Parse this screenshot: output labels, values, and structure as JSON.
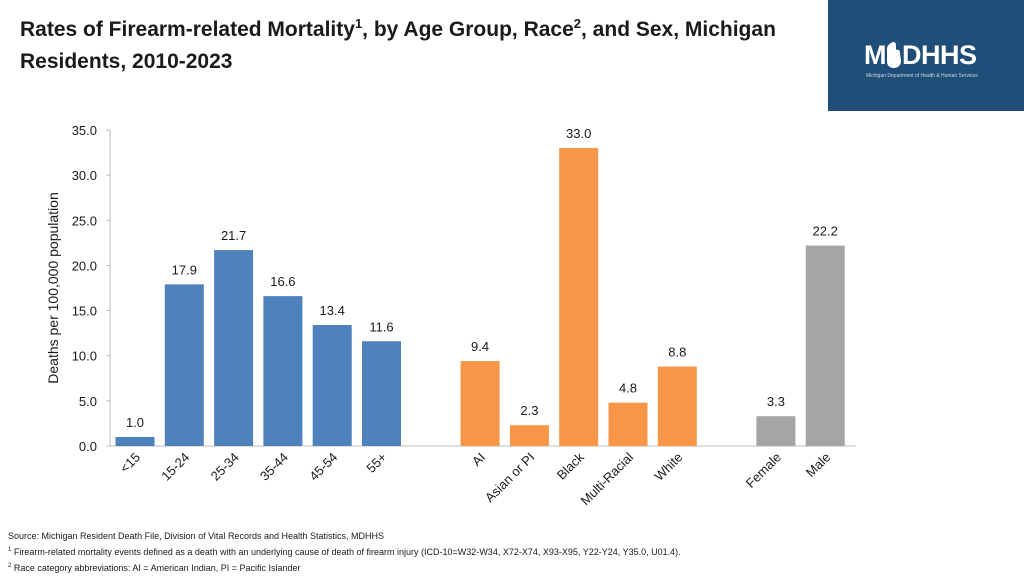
{
  "header": {
    "title_part1": "Rates of Firearm-related Mortality",
    "title_sup1": "1",
    "title_part2": ", by Age Group, Race",
    "title_sup2": "2",
    "title_part3": ", and Sex, Michigan Residents, 2010-2023"
  },
  "logo": {
    "text_letter_m": "M",
    "text_rest": "DHHS",
    "subtitle": "Michigan Department of Health & Human Services"
  },
  "chart_data": {
    "type": "bar",
    "title": "Rates of Firearm-related Mortality, by Age Group, Race, and Sex, Michigan Residents, 2010-2023",
    "ylabel": "Deaths per 100,000 population",
    "xlabel": "",
    "ylim": [
      0,
      35
    ],
    "yticks": [
      "0.0",
      "5.0",
      "10.0",
      "15.0",
      "20.0",
      "25.0",
      "30.0",
      "35.0"
    ],
    "grid": false,
    "groups": [
      {
        "name": "Age Group",
        "color": "#4f81bd",
        "categories": [
          "<15",
          "15-24",
          "25-34",
          "35-44",
          "45-54",
          "55+"
        ],
        "values": [
          1.0,
          17.9,
          21.7,
          16.6,
          13.4,
          11.6
        ],
        "labels": [
          "1.0",
          "17.9",
          "21.7",
          "16.6",
          "13.4",
          "11.6"
        ]
      },
      {
        "name": "Race",
        "color": "#f79646",
        "categories": [
          "AI",
          "Asian or PI",
          "Black",
          "Multi-Racial",
          "White"
        ],
        "values": [
          9.4,
          2.3,
          33.0,
          4.8,
          8.8
        ],
        "labels": [
          "9.4",
          "2.3",
          "33.0",
          "4.8",
          "8.8"
        ]
      },
      {
        "name": "Sex",
        "color": "#a5a5a5",
        "categories": [
          "Female",
          "Male"
        ],
        "values": [
          3.3,
          22.2
        ],
        "labels": [
          "3.3",
          "22.2"
        ]
      }
    ]
  },
  "footnotes": {
    "source": "Source: Michigan Resident Death File, Division of Vital Records and Health Statistics, MDHHS",
    "note1_marker": "1",
    "note1": " Firearm-related mortality events defined as a death with an underlying cause of death of firearm injury (ICD-10=W32-W34, X72-X74, X93-X95, Y22-Y24, Y35.0, U01.4).",
    "note2_marker": "2",
    "note2": " Race category abbreviations: AI = American Indian, PI = Pacific Islander"
  }
}
